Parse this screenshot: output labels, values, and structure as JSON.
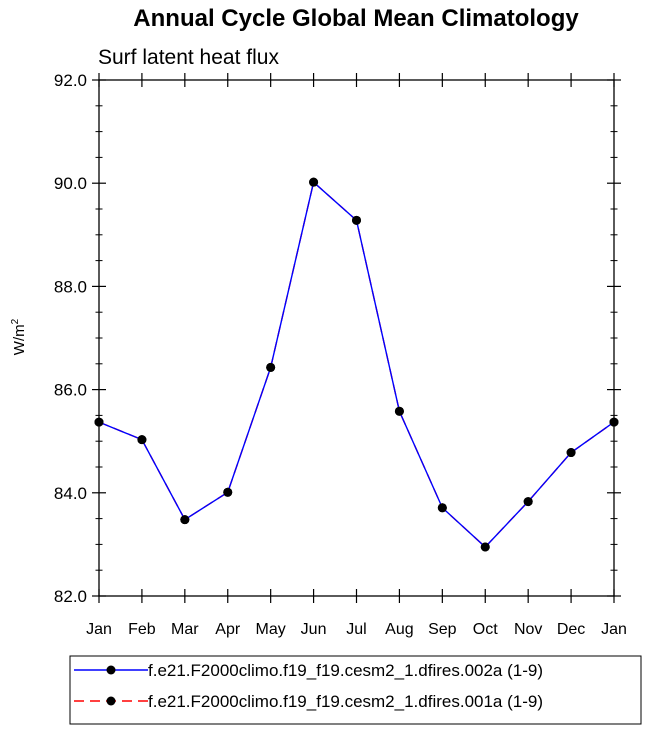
{
  "chart_data": {
    "type": "line",
    "title": "Annual Cycle Global Mean Climatology",
    "subtitle": "Surf latent heat flux",
    "ylabel_base": "W/m",
    "ylabel_sup": "2",
    "xlabel": "",
    "categories": [
      "Jan",
      "Feb",
      "Mar",
      "Apr",
      "May",
      "Jun",
      "Jul",
      "Aug",
      "Sep",
      "Oct",
      "Nov",
      "Dec",
      "Jan"
    ],
    "ylim": [
      82.0,
      92.0
    ],
    "yticks": [
      "82.0",
      "84.0",
      "86.0",
      "88.0",
      "90.0",
      "92.0"
    ],
    "ytick_values": [
      82,
      84,
      86,
      88,
      90,
      92
    ],
    "yminor_step": 0.5,
    "grid": false,
    "legend_position": "bottom",
    "series": [
      {
        "name": "f.e21.F2000climo.f19_f19.cesm2_1.dfires.002a (1-9)",
        "color": "#0000ff",
        "line_style": "solid",
        "marker": "filled-circle",
        "values": [
          85.37,
          85.03,
          83.48,
          84.01,
          86.43,
          90.02,
          89.28,
          85.58,
          83.71,
          82.95,
          83.83,
          84.78,
          85.37
        ]
      },
      {
        "name": "f.e21.F2000climo.f19_f19.cesm2_1.dfires.001a (1-9)",
        "color": "#ff0000",
        "line_style": "dashed",
        "marker": "filled-circle",
        "values": [
          85.37,
          85.03,
          83.48,
          84.01,
          86.43,
          90.02,
          89.28,
          85.58,
          83.71,
          82.95,
          83.83,
          84.78,
          85.37
        ]
      }
    ]
  }
}
